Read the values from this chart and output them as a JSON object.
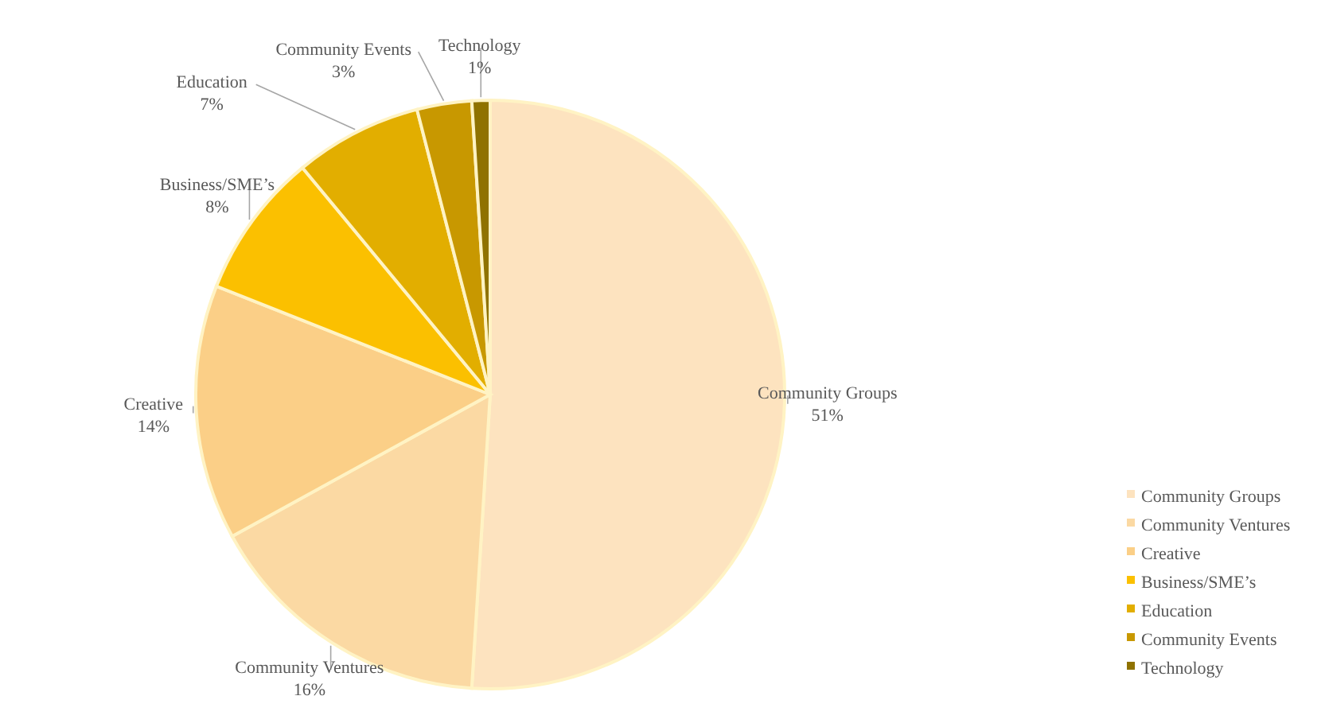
{
  "chart_data": {
    "type": "pie",
    "categories": [
      "Community Groups",
      "Community Ventures",
      "Creative",
      "Business/SME’s",
      "Education",
      "Community Events",
      "Technology"
    ],
    "values": [
      51,
      16,
      14,
      8,
      7,
      3,
      1
    ],
    "value_labels": [
      "51%",
      "16%",
      "14%",
      "8%",
      "7%",
      "3%",
      "1%"
    ],
    "colors": [
      "#fde3bf",
      "#fbd9a3",
      "#fbcf87",
      "#fbc000",
      "#e2ae00",
      "#c89800",
      "#8f7200"
    ],
    "legend": "right"
  }
}
